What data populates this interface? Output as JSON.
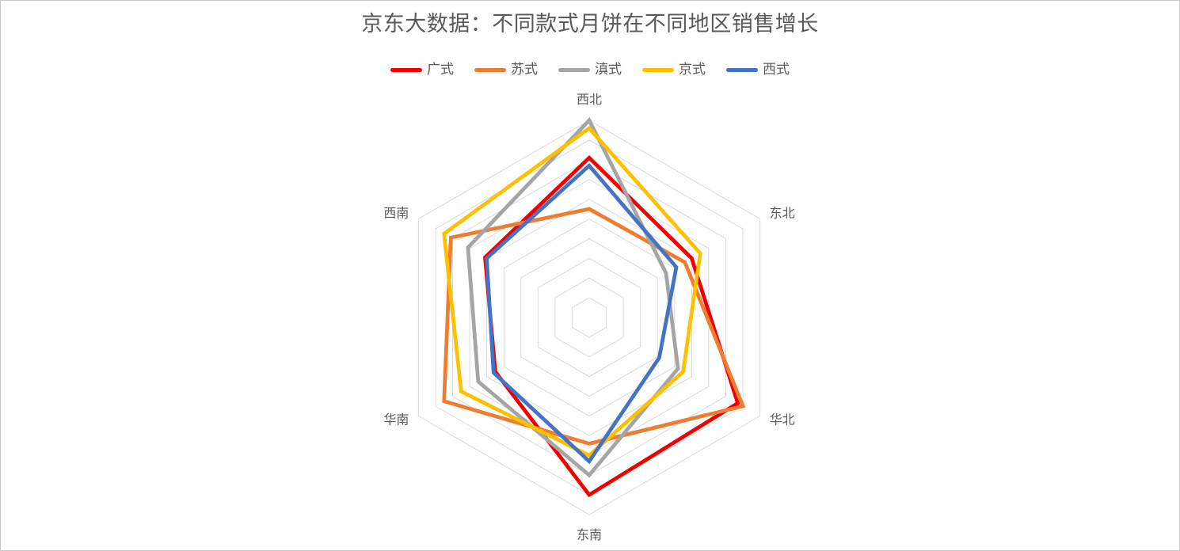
{
  "frame": {
    "background": "#FFFFFF",
    "border_color": "#C8C8C8"
  },
  "colors": {
    "text": "#595959",
    "grid": "#D9D9D9"
  },
  "chart_data": {
    "type": "radar",
    "title": "京东大数据：不同款式月饼在不同地区销售增长",
    "categories": [
      "西北",
      "东北",
      "华北",
      "东南",
      "华南",
      "西南"
    ],
    "rings": 10,
    "max": 1.0,
    "grid": true,
    "legend_position": "top",
    "series": [
      {
        "name": "广式",
        "color": "#F00000",
        "values": [
          0.81,
          0.6,
          0.87,
          0.9,
          0.55,
          0.61
        ]
      },
      {
        "name": "苏式",
        "color": "#ED7D31",
        "values": [
          0.55,
          0.56,
          0.9,
          0.64,
          0.85,
          0.81
        ]
      },
      {
        "name": "滇式",
        "color": "#A5A5A5",
        "values": [
          1.0,
          0.45,
          0.52,
          0.8,
          0.65,
          0.71
        ]
      },
      {
        "name": "京式",
        "color": "#FFC000",
        "values": [
          0.96,
          0.65,
          0.55,
          0.7,
          0.75,
          0.85
        ]
      },
      {
        "name": "西式",
        "color": "#4472C4",
        "values": [
          0.77,
          0.51,
          0.41,
          0.73,
          0.56,
          0.6
        ]
      }
    ]
  }
}
